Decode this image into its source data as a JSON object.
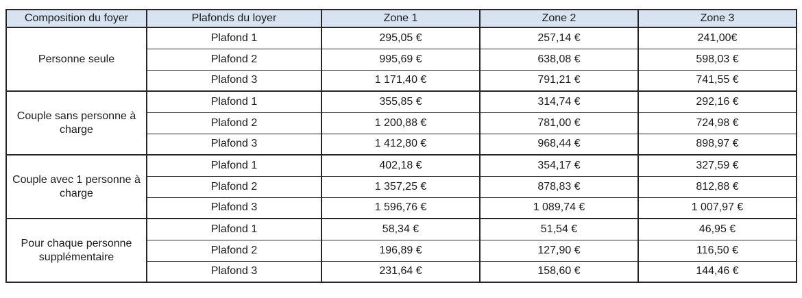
{
  "table": {
    "header": {
      "composition": "Composition du foyer",
      "plafonds": "Plafonds du loyer",
      "zones": [
        "Zone 1",
        "Zone 2",
        "Zone 3"
      ]
    },
    "groups": [
      {
        "label": "Personne seule",
        "rows": [
          {
            "plafond": "Plafond 1",
            "values": [
              "295,05 €",
              "257,14 €",
              "241,00€"
            ]
          },
          {
            "plafond": "Plafond 2",
            "values": [
              "995,69 €",
              "638,08 €",
              "598,03 €"
            ]
          },
          {
            "plafond": "Plafond 3",
            "values": [
              "1 171,40 €",
              "791,21 €",
              "741,55 €"
            ]
          }
        ]
      },
      {
        "label": "Couple sans personne à charge",
        "rows": [
          {
            "plafond": "Plafond 1",
            "values": [
              "355,85 €",
              "314,74 €",
              "292,16 €"
            ]
          },
          {
            "plafond": "Plafond 2",
            "values": [
              "1 200,88 €",
              "781,00 €",
              "724,98 €"
            ]
          },
          {
            "plafond": "Plafond 3",
            "values": [
              "1 412,80 €",
              "968,44 €",
              "898,97 €"
            ]
          }
        ]
      },
      {
        "label": "Couple avec 1 personne à charge",
        "rows": [
          {
            "plafond": "Plafond 1",
            "values": [
              "402,18 €",
              "354,17 €",
              "327,59 €"
            ]
          },
          {
            "plafond": "Plafond 2",
            "values": [
              "1 357,25 €",
              "878,83 €",
              "812,88 €"
            ]
          },
          {
            "plafond": "Plafond 3",
            "values": [
              "1 596,76 €",
              "1 089,74 €",
              "1 007,97 €"
            ]
          }
        ]
      },
      {
        "label": "Pour chaque personne supplémentaire",
        "rows": [
          {
            "plafond": "Plafond 1",
            "values": [
              "58,34 €",
              "51,54 €",
              "46,95 €"
            ]
          },
          {
            "plafond": "Plafond 2",
            "values": [
              "196,89 €",
              "127,90 €",
              "116,50 €"
            ]
          },
          {
            "plafond": "Plafond 3",
            "values": [
              "231,64 €",
              "158,60 €",
              "144,46 €"
            ]
          }
        ]
      }
    ]
  },
  "colors": {
    "header_bg": "#d7e3f0",
    "border": "#262626",
    "text": "#1b1b1b"
  }
}
